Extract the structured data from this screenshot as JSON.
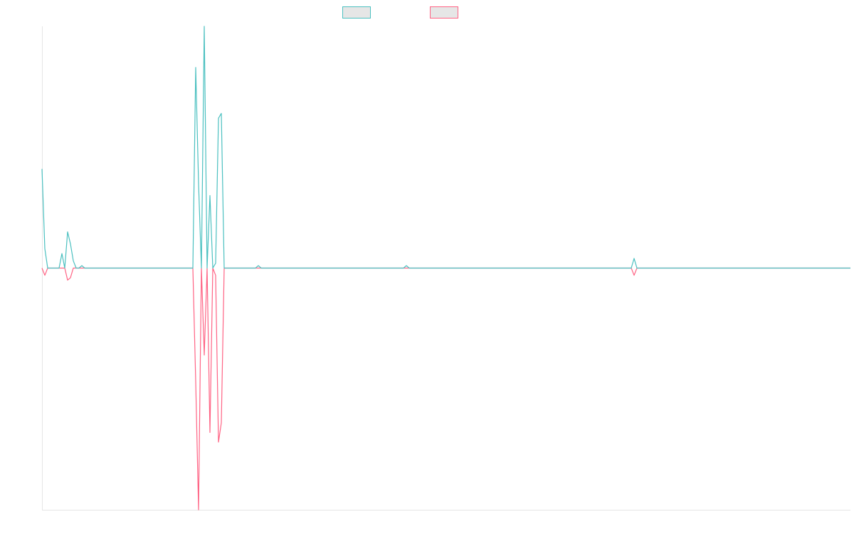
{
  "chart_data": {
    "type": "line",
    "ylim": [
      -100,
      100
    ],
    "series": [
      {
        "color": "#4bc0c0",
        "values": [
          41,
          8,
          0,
          0,
          0,
          0,
          0,
          6,
          0,
          15,
          10,
          3,
          0,
          0,
          1,
          0,
          0,
          0,
          0,
          0,
          0,
          0,
          0,
          0,
          0,
          0,
          0,
          0,
          0,
          0,
          0,
          0,
          0,
          0,
          0,
          0,
          0,
          0,
          0,
          0,
          0,
          0,
          0,
          0,
          0,
          0,
          0,
          0,
          0,
          0,
          0,
          0,
          0,
          0,
          83,
          35,
          0,
          100,
          0,
          30,
          0,
          2,
          62,
          64,
          0,
          0,
          0,
          0,
          0,
          0,
          0,
          0,
          0,
          0,
          0,
          0,
          1,
          0,
          0,
          0,
          0,
          0,
          0,
          0,
          0,
          0,
          0,
          0,
          0,
          0,
          0,
          0,
          0,
          0,
          0,
          0,
          0,
          0,
          0,
          0,
          0,
          0,
          0,
          0,
          0,
          0,
          0,
          0,
          0,
          0,
          0,
          0,
          0,
          0,
          0,
          0,
          0,
          0,
          0,
          0,
          0,
          0,
          0,
          0,
          0,
          0,
          0,
          0,
          1,
          0,
          0,
          0,
          0,
          0,
          0,
          0,
          0,
          0,
          0,
          0,
          0,
          0,
          0,
          0,
          0,
          0,
          0,
          0,
          0,
          0,
          0,
          0,
          0,
          0,
          0,
          0,
          0,
          0,
          0,
          0,
          0,
          0,
          0,
          0,
          0,
          0,
          0,
          0,
          0,
          0,
          0,
          0,
          0,
          0,
          0,
          0,
          0,
          0,
          0,
          0,
          0,
          0,
          0,
          0,
          0,
          0,
          0,
          0,
          0,
          0,
          0,
          0,
          0,
          0,
          0,
          0,
          0,
          0,
          0,
          0,
          0,
          0,
          0,
          0,
          0,
          0,
          0,
          0,
          4,
          0,
          0,
          0,
          0,
          0,
          0,
          0,
          0,
          0,
          0,
          0,
          0,
          0,
          0,
          0,
          0,
          0,
          0,
          0,
          0,
          0,
          0,
          0,
          0,
          0,
          0,
          0,
          0,
          0,
          0,
          0,
          0,
          0,
          0,
          0,
          0,
          0,
          0,
          0,
          0,
          0,
          0,
          0,
          0,
          0,
          0,
          0,
          0,
          0,
          0,
          0,
          0,
          0,
          0,
          0,
          0,
          0,
          0,
          0,
          0,
          0,
          0,
          0,
          0,
          0,
          0,
          0,
          0,
          0,
          0,
          0,
          0,
          0,
          0,
          0,
          0
        ]
      },
      {
        "color": "#ff6384",
        "values": [
          0,
          -3,
          0,
          0,
          0,
          0,
          0,
          0,
          0,
          -5,
          -4,
          0,
          0,
          0,
          0,
          0,
          0,
          0,
          0,
          0,
          0,
          0,
          0,
          0,
          0,
          0,
          0,
          0,
          0,
          0,
          0,
          0,
          0,
          0,
          0,
          0,
          0,
          0,
          0,
          0,
          0,
          0,
          0,
          0,
          0,
          0,
          0,
          0,
          0,
          0,
          0,
          0,
          0,
          0,
          -47,
          -100,
          0,
          -36,
          0,
          -68,
          0,
          -3,
          -72,
          -64,
          0,
          0,
          0,
          0,
          0,
          0,
          0,
          0,
          0,
          0,
          0,
          0,
          0,
          0,
          0,
          0,
          0,
          0,
          0,
          0,
          0,
          0,
          0,
          0,
          0,
          0,
          0,
          0,
          0,
          0,
          0,
          0,
          0,
          0,
          0,
          0,
          0,
          0,
          0,
          0,
          0,
          0,
          0,
          0,
          0,
          0,
          0,
          0,
          0,
          0,
          0,
          0,
          0,
          0,
          0,
          0,
          0,
          0,
          0,
          0,
          0,
          0,
          0,
          0,
          0,
          0,
          0,
          0,
          0,
          0,
          0,
          0,
          0,
          0,
          0,
          0,
          0,
          0,
          0,
          0,
          0,
          0,
          0,
          0,
          0,
          0,
          0,
          0,
          0,
          0,
          0,
          0,
          0,
          0,
          0,
          0,
          0,
          0,
          0,
          0,
          0,
          0,
          0,
          0,
          0,
          0,
          0,
          0,
          0,
          0,
          0,
          0,
          0,
          0,
          0,
          0,
          0,
          0,
          0,
          0,
          0,
          0,
          0,
          0,
          0,
          0,
          0,
          0,
          0,
          0,
          0,
          0,
          0,
          0,
          0,
          0,
          0,
          0,
          0,
          0,
          0,
          0,
          0,
          0,
          -3,
          0,
          0,
          0,
          0,
          0,
          0,
          0,
          0,
          0,
          0,
          0,
          0,
          0,
          0,
          0,
          0,
          0,
          0,
          0,
          0,
          0,
          0,
          0,
          0,
          0,
          0,
          0,
          0,
          0,
          0,
          0,
          0,
          0,
          0,
          0,
          0,
          0,
          0,
          0,
          0,
          0,
          0,
          0,
          0,
          0,
          0,
          0,
          0,
          0,
          0,
          0,
          0,
          0,
          0,
          0,
          0,
          0,
          0,
          0,
          0,
          0,
          0,
          0,
          0,
          0,
          0,
          0,
          0,
          0,
          0,
          0,
          0,
          0,
          0,
          0,
          0
        ]
      }
    ]
  }
}
